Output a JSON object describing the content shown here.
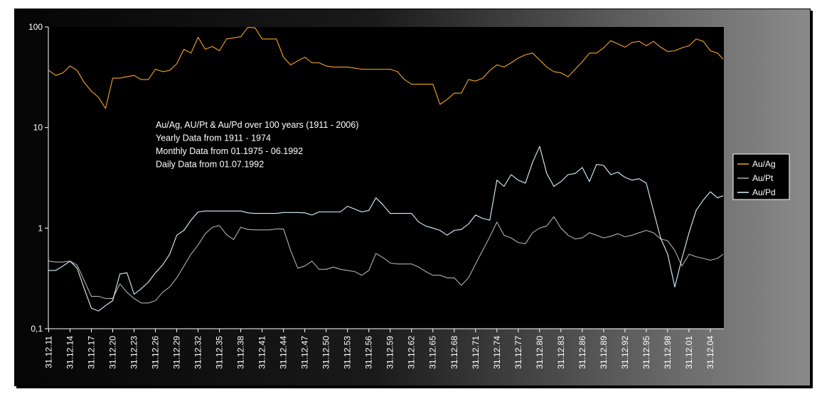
{
  "chart_data": {
    "type": "line",
    "title": "",
    "xlabel": "",
    "ylabel": "",
    "y_scale": "log",
    "ylim": [
      0.1,
      100
    ],
    "y_ticks": [
      {
        "value": 100,
        "label": "100"
      },
      {
        "value": 10,
        "label": "10"
      },
      {
        "value": 1,
        "label": "1"
      },
      {
        "value": 0.1,
        "label": "0,1"
      }
    ],
    "x_range_years": [
      1911.95,
      2006.9
    ],
    "x_tick_labels": [
      "31.12.11",
      "31.12.14",
      "31.12.17",
      "31.12.20",
      "31.12.23",
      "31.12.26",
      "31.12.29",
      "31.12.32",
      "31.12.35",
      "31.12.38",
      "31.12.41",
      "31.12.44",
      "31.12.47",
      "31.12.50",
      "31.12.53",
      "31.12.56",
      "31.12.59",
      "31.12.62",
      "31.12.65",
      "31.12.68",
      "31.12.71",
      "31.12.74",
      "31.12.77",
      "31.12.80",
      "31.12.83",
      "31.12.86",
      "31.12.89",
      "31.12.92",
      "31.12.95",
      "31.12.98",
      "31.12.01",
      "31.12.04"
    ],
    "annotation_lines": [
      "Au/Ag, AU/Pt & Au/Pd over 100  years (1911 - 2006)",
      "Yearly Data from 1911 - 1974",
      "Monthly Data from 01.1975 - 06.1992",
      "Daily Data from 01.07.1992"
    ],
    "legend_position": "right",
    "grid": false,
    "series": [
      {
        "name": "Au/Ag",
        "color": "#f5a623",
        "points": [
          [
            1912,
            37
          ],
          [
            1913,
            33
          ],
          [
            1914,
            35
          ],
          [
            1915,
            41
          ],
          [
            1916,
            37
          ],
          [
            1917,
            28
          ],
          [
            1918,
            23
          ],
          [
            1919,
            20
          ],
          [
            1920,
            15.5
          ],
          [
            1921,
            31
          ],
          [
            1922,
            31
          ],
          [
            1923,
            32
          ],
          [
            1924,
            33
          ],
          [
            1925,
            30
          ],
          [
            1926,
            30
          ],
          [
            1927,
            38
          ],
          [
            1928,
            36
          ],
          [
            1929,
            37
          ],
          [
            1930,
            43
          ],
          [
            1931,
            60
          ],
          [
            1932,
            55
          ],
          [
            1933,
            79
          ],
          [
            1934,
            60
          ],
          [
            1935,
            64
          ],
          [
            1936,
            58
          ],
          [
            1937,
            76
          ],
          [
            1938,
            78
          ],
          [
            1939,
            80
          ],
          [
            1940,
            99
          ],
          [
            1941,
            98
          ],
          [
            1942,
            76
          ],
          [
            1943,
            76
          ],
          [
            1944,
            76
          ],
          [
            1945,
            50
          ],
          [
            1946,
            42
          ],
          [
            1947,
            46
          ],
          [
            1948,
            50
          ],
          [
            1949,
            44
          ],
          [
            1950,
            44
          ],
          [
            1951,
            41
          ],
          [
            1952,
            40
          ],
          [
            1953,
            40
          ],
          [
            1954,
            40
          ],
          [
            1955,
            39
          ],
          [
            1956,
            38
          ],
          [
            1957,
            38
          ],
          [
            1958,
            38
          ],
          [
            1959,
            38
          ],
          [
            1960,
            38
          ],
          [
            1961,
            36
          ],
          [
            1962,
            30
          ],
          [
            1963,
            27
          ],
          [
            1964,
            27
          ],
          [
            1965,
            27
          ],
          [
            1966,
            27
          ],
          [
            1967,
            17
          ],
          [
            1968,
            19
          ],
          [
            1969,
            22
          ],
          [
            1970,
            22
          ],
          [
            1971,
            30
          ],
          [
            1972,
            29
          ],
          [
            1973,
            31
          ],
          [
            1974,
            37
          ],
          [
            1975,
            42
          ],
          [
            1976,
            40
          ],
          [
            1977,
            44
          ],
          [
            1978,
            49
          ],
          [
            1979,
            53
          ],
          [
            1980,
            55
          ],
          [
            1981,
            47
          ],
          [
            1982,
            40
          ],
          [
            1983,
            36
          ],
          [
            1984,
            35
          ],
          [
            1985,
            32
          ],
          [
            1986,
            38
          ],
          [
            1987,
            45
          ],
          [
            1988,
            55
          ],
          [
            1989,
            55
          ],
          [
            1990,
            62
          ],
          [
            1991,
            73
          ],
          [
            1992,
            68
          ],
          [
            1993,
            63
          ],
          [
            1994,
            70
          ],
          [
            1995,
            72
          ],
          [
            1996,
            65
          ],
          [
            1997,
            72
          ],
          [
            1998,
            63
          ],
          [
            1999,
            57
          ],
          [
            2000,
            58
          ],
          [
            2001,
            62
          ],
          [
            2002,
            65
          ],
          [
            2003,
            76
          ],
          [
            2004,
            72
          ],
          [
            2005,
            58
          ],
          [
            2006,
            55
          ],
          [
            2006.8,
            48
          ]
        ]
      },
      {
        "name": "Au/Pt",
        "color": "#b0b0b0",
        "points": [
          [
            1912,
            0.47
          ],
          [
            1913,
            0.46
          ],
          [
            1914,
            0.46
          ],
          [
            1915,
            0.47
          ],
          [
            1916,
            0.43
          ],
          [
            1917,
            0.3
          ],
          [
            1918,
            0.21
          ],
          [
            1919,
            0.21
          ],
          [
            1920,
            0.2
          ],
          [
            1921,
            0.2
          ],
          [
            1922,
            0.28
          ],
          [
            1923,
            0.23
          ],
          [
            1924,
            0.2
          ],
          [
            1925,
            0.18
          ],
          [
            1926,
            0.18
          ],
          [
            1927,
            0.19
          ],
          [
            1928,
            0.23
          ],
          [
            1929,
            0.26
          ],
          [
            1930,
            0.32
          ],
          [
            1931,
            0.42
          ],
          [
            1932,
            0.55
          ],
          [
            1933,
            0.68
          ],
          [
            1934,
            0.88
          ],
          [
            1935,
            1.02
          ],
          [
            1936,
            1.06
          ],
          [
            1937,
            0.86
          ],
          [
            1938,
            0.77
          ],
          [
            1939,
            1.02
          ],
          [
            1940,
            0.97
          ],
          [
            1941,
            0.96
          ],
          [
            1942,
            0.96
          ],
          [
            1943,
            0.96
          ],
          [
            1944,
            0.98
          ],
          [
            1945,
            0.98
          ],
          [
            1946,
            0.6
          ],
          [
            1947,
            0.4
          ],
          [
            1948,
            0.42
          ],
          [
            1949,
            0.47
          ],
          [
            1950,
            0.39
          ],
          [
            1951,
            0.39
          ],
          [
            1952,
            0.41
          ],
          [
            1953,
            0.39
          ],
          [
            1954,
            0.38
          ],
          [
            1955,
            0.37
          ],
          [
            1956,
            0.34
          ],
          [
            1957,
            0.38
          ],
          [
            1958,
            0.56
          ],
          [
            1959,
            0.51
          ],
          [
            1960,
            0.45
          ],
          [
            1961,
            0.44
          ],
          [
            1962,
            0.44
          ],
          [
            1963,
            0.44
          ],
          [
            1964,
            0.41
          ],
          [
            1965,
            0.37
          ],
          [
            1966,
            0.34
          ],
          [
            1967,
            0.34
          ],
          [
            1968,
            0.32
          ],
          [
            1969,
            0.32
          ],
          [
            1970,
            0.27
          ],
          [
            1971,
            0.32
          ],
          [
            1972,
            0.44
          ],
          [
            1973,
            0.6
          ],
          [
            1974,
            0.82
          ],
          [
            1975,
            1.15
          ],
          [
            1976,
            0.85
          ],
          [
            1977,
            0.8
          ],
          [
            1978,
            0.72
          ],
          [
            1979,
            0.7
          ],
          [
            1980,
            0.9
          ],
          [
            1981,
            1.0
          ],
          [
            1982,
            1.05
          ],
          [
            1983,
            1.3
          ],
          [
            1984,
            1.0
          ],
          [
            1985,
            0.85
          ],
          [
            1986,
            0.78
          ],
          [
            1987,
            0.8
          ],
          [
            1988,
            0.9
          ],
          [
            1989,
            0.85
          ],
          [
            1990,
            0.8
          ],
          [
            1991,
            0.83
          ],
          [
            1992,
            0.88
          ],
          [
            1993,
            0.82
          ],
          [
            1994,
            0.85
          ],
          [
            1995,
            0.9
          ],
          [
            1996,
            0.95
          ],
          [
            1997,
            0.9
          ],
          [
            1998,
            0.78
          ],
          [
            1999,
            0.75
          ],
          [
            2000,
            0.6
          ],
          [
            2001,
            0.42
          ],
          [
            2002,
            0.55
          ],
          [
            2003,
            0.52
          ],
          [
            2004,
            0.5
          ],
          [
            2005,
            0.48
          ],
          [
            2006,
            0.5
          ],
          [
            2006.8,
            0.55
          ]
        ]
      },
      {
        "name": "Au/Pd",
        "color": "#d8f6ff",
        "points": [
          [
            1912,
            0.38
          ],
          [
            1913,
            0.38
          ],
          [
            1914,
            0.42
          ],
          [
            1915,
            0.47
          ],
          [
            1916,
            0.4
          ],
          [
            1917,
            0.25
          ],
          [
            1918,
            0.16
          ],
          [
            1919,
            0.15
          ],
          [
            1920,
            0.17
          ],
          [
            1921,
            0.19
          ],
          [
            1922,
            0.35
          ],
          [
            1923,
            0.36
          ],
          [
            1924,
            0.22
          ],
          [
            1925,
            0.25
          ],
          [
            1926,
            0.29
          ],
          [
            1927,
            0.36
          ],
          [
            1928,
            0.43
          ],
          [
            1929,
            0.55
          ],
          [
            1930,
            0.85
          ],
          [
            1931,
            0.95
          ],
          [
            1932,
            1.2
          ],
          [
            1933,
            1.45
          ],
          [
            1934,
            1.48
          ],
          [
            1935,
            1.48
          ],
          [
            1936,
            1.48
          ],
          [
            1937,
            1.48
          ],
          [
            1938,
            1.48
          ],
          [
            1939,
            1.48
          ],
          [
            1940,
            1.42
          ],
          [
            1941,
            1.4
          ],
          [
            1942,
            1.4
          ],
          [
            1943,
            1.4
          ],
          [
            1944,
            1.4
          ],
          [
            1945,
            1.43
          ],
          [
            1946,
            1.43
          ],
          [
            1947,
            1.43
          ],
          [
            1948,
            1.42
          ],
          [
            1949,
            1.35
          ],
          [
            1950,
            1.45
          ],
          [
            1951,
            1.45
          ],
          [
            1952,
            1.45
          ],
          [
            1953,
            1.45
          ],
          [
            1954,
            1.65
          ],
          [
            1955,
            1.55
          ],
          [
            1956,
            1.45
          ],
          [
            1957,
            1.5
          ],
          [
            1958,
            2.0
          ],
          [
            1959,
            1.7
          ],
          [
            1960,
            1.4
          ],
          [
            1961,
            1.4
          ],
          [
            1962,
            1.4
          ],
          [
            1963,
            1.4
          ],
          [
            1964,
            1.15
          ],
          [
            1965,
            1.05
          ],
          [
            1966,
            1.0
          ],
          [
            1967,
            0.95
          ],
          [
            1968,
            0.85
          ],
          [
            1969,
            0.95
          ],
          [
            1970,
            0.97
          ],
          [
            1971,
            1.1
          ],
          [
            1972,
            1.35
          ],
          [
            1973,
            1.25
          ],
          [
            1974,
            1.2
          ],
          [
            1975,
            3.0
          ],
          [
            1976,
            2.6
          ],
          [
            1977,
            3.4
          ],
          [
            1978,
            3.0
          ],
          [
            1979,
            2.8
          ],
          [
            1980,
            4.5
          ],
          [
            1981,
            6.5
          ],
          [
            1982,
            3.5
          ],
          [
            1983,
            2.6
          ],
          [
            1984,
            2.9
          ],
          [
            1985,
            3.4
          ],
          [
            1986,
            3.5
          ],
          [
            1987,
            4.0
          ],
          [
            1988,
            2.9
          ],
          [
            1989,
            4.3
          ],
          [
            1990,
            4.2
          ],
          [
            1991,
            3.4
          ],
          [
            1992,
            3.6
          ],
          [
            1993,
            3.2
          ],
          [
            1994,
            3.0
          ],
          [
            1995,
            3.1
          ],
          [
            1996,
            2.8
          ],
          [
            1997,
            1.5
          ],
          [
            1998,
            0.8
          ],
          [
            1999,
            0.55
          ],
          [
            2000,
            0.26
          ],
          [
            2001,
            0.5
          ],
          [
            2002,
            0.9
          ],
          [
            2003,
            1.5
          ],
          [
            2004,
            1.9
          ],
          [
            2005,
            2.3
          ],
          [
            2006,
            2.0
          ],
          [
            2006.8,
            2.1
          ]
        ]
      }
    ]
  }
}
